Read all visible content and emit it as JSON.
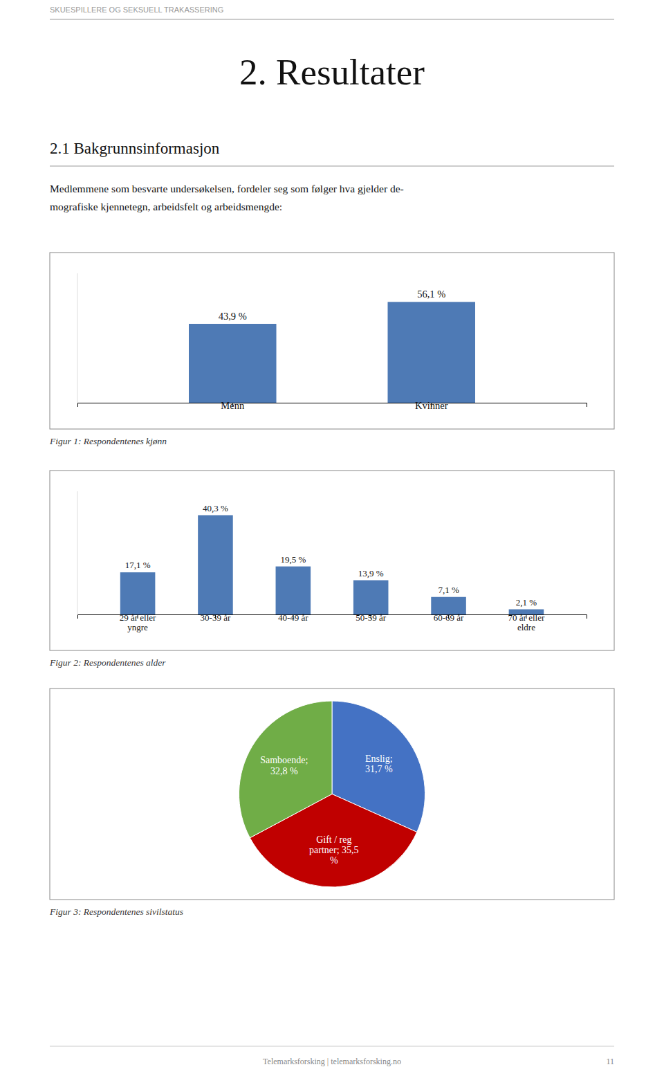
{
  "page_title": "SKUESPILLERE OG SEKSUELL TRAKASSERING",
  "section_title": "2. Resultater",
  "subsection_title": "2.1 Bakgrunnsinformasjon",
  "body_text": [
    "Medlemmene som besvarte undersøkelsen, fordeler seg som følger hva gjelder de-",
    "mografiske kjennetegn, arbeidsfelt og arbeidsmengde:"
  ],
  "footer": [
    "Telemarksforsking  |  telemarksforsking.no",
    "11"
  ],
  "chart_data": [
    {
      "type": "bar",
      "title": "Figur 1: Respondentenes kjønn",
      "categories": [
        "Menn",
        "Kvinner"
      ],
      "values": [
        43.9,
        56.1
      ],
      "value_labels": [
        "43,9 %",
        "56,1 %"
      ],
      "data_labels": true,
      "color": "#4e7ab5",
      "ylim": [
        0,
        72
      ],
      "tick_labels": "x",
      "grid": false
    },
    {
      "type": "bar",
      "title": "Figur 2: Respondentenes alder",
      "categories": [
        "29 år eller\nyngre",
        "30-39 år",
        "40-49 år",
        "50-59 år",
        "60-69 år",
        "70 år eller\neldre"
      ],
      "values": [
        17.1,
        40.3,
        19.5,
        13.9,
        7.1,
        2.1
      ],
      "value_labels": [
        "17,1 %",
        "40,3 %",
        "19,5 %",
        "13,9 %",
        "7,1 %",
        "2,1 %"
      ],
      "data_labels": true,
      "color": "#4e7ab5",
      "ylim": [
        0,
        50
      ],
      "tick_labels": "x",
      "grid": false
    },
    {
      "type": "pie",
      "title": "Figur 3: Respondentenes sivilstatus",
      "values": [
        31.7,
        35.5,
        32.8
      ],
      "value_labels": [
        "Enslig;\n31,7 %",
        "Gift / reg\npartner; 35,5\n%",
        "Samboende;\n32,8 %"
      ],
      "data_labels": true,
      "colors": [
        "#4472c4",
        "#c00000",
        "#70ad47"
      ]
    }
  ]
}
